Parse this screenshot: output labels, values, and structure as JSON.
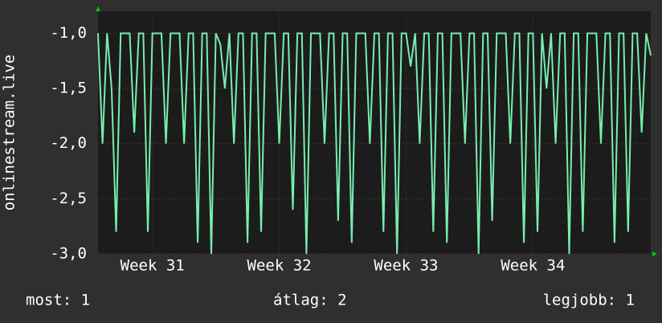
{
  "chart_data": {
    "type": "line",
    "y_label": "onlinestream.live",
    "series": [
      {
        "color": "#77eeb0",
        "values": [
          -1,
          -2,
          -1,
          -1.5,
          -2.8,
          -1,
          -1,
          -1,
          -1.9,
          -1,
          -1,
          -2.8,
          -1,
          -1,
          -1,
          -2,
          -1,
          -1,
          -1,
          -2,
          -1,
          -1,
          -2.9,
          -1,
          -1,
          -3,
          -1,
          -1.1,
          -1.5,
          -1,
          -2,
          -1,
          -1,
          -2.9,
          -1,
          -1,
          -2.8,
          -1,
          -1,
          -1,
          -2,
          -1,
          -1,
          -2.6,
          -1,
          -1,
          -3,
          -1,
          -1,
          -1,
          -2,
          -1,
          -1,
          -2.7,
          -1,
          -1,
          -2.9,
          -1,
          -1,
          -1,
          -2,
          -1,
          -1,
          -2.8,
          -1,
          -1,
          -3,
          -1,
          -1,
          -1.3,
          -1,
          -2,
          -1,
          -1,
          -2.8,
          -1,
          -1,
          -2.9,
          -1,
          -1,
          -1,
          -2,
          -1,
          -1,
          -3,
          -1,
          -1,
          -2.7,
          -1,
          -1,
          -1,
          -2,
          -1,
          -1,
          -2.9,
          -1,
          -1,
          -2.8,
          -1,
          -1.5,
          -1,
          -2,
          -1,
          -1,
          -3,
          -1,
          -1,
          -2.8,
          -1,
          -1,
          -1,
          -2,
          -1,
          -1,
          -2.9,
          -1,
          -1,
          -2.8,
          -1,
          -1,
          -1.9,
          -1,
          -1.2
        ]
      }
    ],
    "xlim": [
      0,
      122
    ],
    "xticks": [
      {
        "value": 12,
        "label": "Week 31"
      },
      {
        "value": 40,
        "label": "Week 32"
      },
      {
        "value": 68,
        "label": "Week 33"
      },
      {
        "value": 96,
        "label": "Week 34"
      }
    ],
    "ylim": [
      -3,
      -0.8
    ],
    "yticks": [
      {
        "value": -3,
        "label": "-3,0"
      },
      {
        "value": -2.5,
        "label": "-2,5"
      },
      {
        "value": -2,
        "label": "-2,0"
      },
      {
        "value": -1.5,
        "label": "-1,5"
      },
      {
        "value": -1,
        "label": "-1,0"
      }
    ],
    "grid": true,
    "footer": [
      "most: 1",
      "átlag: 2",
      "legjobb: 1"
    ]
  }
}
